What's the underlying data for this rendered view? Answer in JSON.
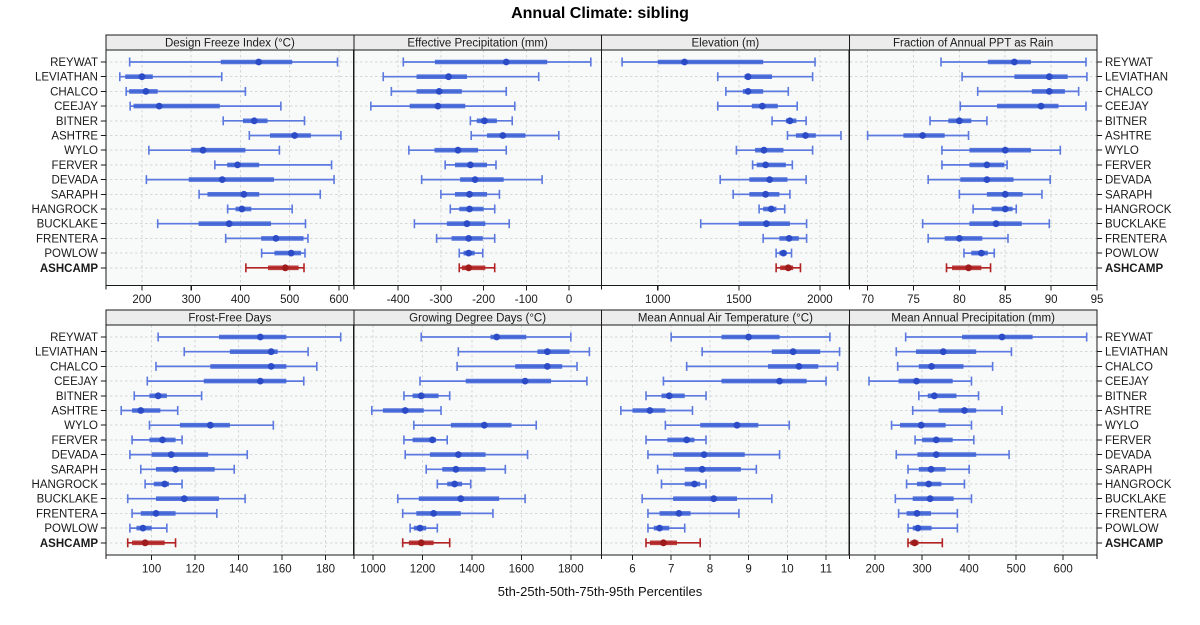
{
  "title": "Annual Climate: sibling",
  "caption": "5th-25th-50th-75th-95th Percentiles",
  "percentile_labels": [
    "5th",
    "25th",
    "50th",
    "75th",
    "95th"
  ],
  "highlight_site": "ASHCAMP",
  "colors": {
    "blue_line": "#5B79DF",
    "blue_band": "#3E62D6",
    "blue_dot": "#2C4BC6",
    "red_line": "#B22222",
    "red_band": "#B22222",
    "red_dot": "#9E1B1B",
    "grid": "#D4D8D8",
    "strip_bg": "#ECECEC",
    "panel_bg": "#F8F9F9",
    "border": "#1A1A1A"
  },
  "sites": [
    "REYWAT",
    "LEVIATHAN",
    "CHALCO",
    "CEEJAY",
    "BITNER",
    "ASHTRE",
    "WYLO",
    "FERVER",
    "DEVADA",
    "SARAPH",
    "HANGROCK",
    "BUCKLAKE",
    "FRENTERA",
    "POWLOW",
    "ASHCAMP"
  ],
  "chart_data": [
    {
      "type": "scatter",
      "subtype": "percentile-interval-dotplot",
      "title": "Design Freeze Index (°C)",
      "xlim": [
        127,
        630
      ],
      "xticks": [
        200,
        300,
        400,
        500,
        600
      ],
      "values": [
        [
          175,
          360,
          437,
          505,
          597
        ],
        [
          155,
          166,
          200,
          222,
          362
        ],
        [
          168,
          174,
          208,
          232,
          410
        ],
        [
          176,
          183,
          235,
          358,
          482
        ],
        [
          365,
          405,
          428,
          455,
          530
        ],
        [
          418,
          460,
          510,
          543,
          604
        ],
        [
          214,
          300,
          324,
          410,
          479
        ],
        [
          348,
          373,
          394,
          438,
          585
        ],
        [
          209,
          295,
          363,
          468,
          590
        ],
        [
          316,
          333,
          407,
          438,
          562
        ],
        [
          374,
          390,
          403,
          422,
          505
        ],
        [
          232,
          315,
          377,
          462,
          532
        ],
        [
          370,
          442,
          472,
          528,
          537
        ],
        [
          443,
          469,
          503,
          523,
          531
        ],
        [
          411,
          456,
          491,
          518,
          529
        ]
      ]
    },
    {
      "type": "scatter",
      "subtype": "percentile-interval-dotplot",
      "title": "Effective Precipitation (mm)",
      "xlim": [
        -504,
        76
      ],
      "xticks": [
        -400,
        -300,
        -200,
        -100,
        0
      ],
      "values": [
        [
          -388,
          -314,
          -147,
          -51,
          51
        ],
        [
          -435,
          -357,
          -282,
          -239,
          -71
        ],
        [
          -416,
          -357,
          -304,
          -251,
          -147
        ],
        [
          -464,
          -373,
          -307,
          -243,
          -127
        ],
        [
          -231,
          -216,
          -198,
          -169,
          -133
        ],
        [
          -229,
          -192,
          -155,
          -102,
          -24
        ],
        [
          -375,
          -315,
          -260,
          -213,
          -147
        ],
        [
          -290,
          -267,
          -231,
          -192,
          -171
        ],
        [
          -345,
          -255,
          -220,
          -153,
          -63
        ],
        [
          -300,
          -267,
          -233,
          -192,
          -163
        ],
        [
          -278,
          -257,
          -233,
          -200,
          -174
        ],
        [
          -362,
          -286,
          -239,
          -196,
          -140
        ],
        [
          -310,
          -275,
          -235,
          -202,
          -174
        ],
        [
          -257,
          -247,
          -235,
          -221,
          -202
        ],
        [
          -257,
          -251,
          -235,
          -196,
          -174
        ]
      ]
    },
    {
      "type": "scatter",
      "subtype": "percentile-interval-dotplot",
      "title": "Elevation (m)",
      "xlim": [
        653,
        2181
      ],
      "xticks": [
        1000,
        1500,
        2000
      ],
      "values": [
        [
          780,
          1000,
          1165,
          1650,
          1970
        ],
        [
          1370,
          1535,
          1557,
          1705,
          1955
        ],
        [
          1420,
          1525,
          1557,
          1650,
          1805
        ],
        [
          1370,
          1580,
          1645,
          1740,
          1860
        ],
        [
          1705,
          1790,
          1815,
          1855,
          1915
        ],
        [
          1800,
          1852,
          1911,
          1975,
          2130
        ],
        [
          1485,
          1600,
          1655,
          1775,
          1955
        ],
        [
          1585,
          1610,
          1665,
          1790,
          1830
        ],
        [
          1385,
          1565,
          1690,
          1800,
          1915
        ],
        [
          1465,
          1565,
          1665,
          1750,
          1815
        ],
        [
          1625,
          1650,
          1700,
          1732,
          1783
        ],
        [
          1265,
          1500,
          1670,
          1815,
          1918
        ],
        [
          1650,
          1750,
          1810,
          1870,
          1918
        ],
        [
          1730,
          1750,
          1775,
          1795,
          1825
        ],
        [
          1730,
          1755,
          1805,
          1835,
          1880
        ]
      ]
    },
    {
      "type": "scatter",
      "subtype": "percentile-interval-dotplot",
      "title": "Fraction of Annual PPT as Rain",
      "xlim": [
        68,
        95
      ],
      "xticks": [
        70,
        75,
        80,
        85,
        90,
        95
      ],
      "values": [
        [
          78.0,
          83.1,
          86.0,
          87.8,
          93.8
        ],
        [
          80.3,
          86.0,
          89.8,
          91.8,
          93.9
        ],
        [
          82.0,
          87.9,
          89.8,
          91.5,
          93.0
        ],
        [
          80.1,
          84.1,
          88.9,
          90.8,
          93.8
        ],
        [
          76.8,
          78.8,
          80.0,
          81.3,
          83.0
        ],
        [
          70.0,
          73.9,
          76.0,
          78.4,
          81.0
        ],
        [
          78.1,
          81.1,
          85.0,
          87.8,
          91.0
        ],
        [
          78.1,
          81.1,
          83.0,
          84.9,
          85.2
        ],
        [
          76.6,
          80.1,
          83.0,
          85.9,
          89.9
        ],
        [
          80.0,
          83.0,
          85.0,
          86.9,
          89.0
        ],
        [
          81.5,
          83.5,
          85.0,
          85.8,
          86.2
        ],
        [
          76.0,
          81.1,
          84.0,
          86.8,
          89.8
        ],
        [
          76.6,
          78.4,
          80.0,
          82.5,
          85.3
        ],
        [
          80.5,
          81.3,
          82.4,
          83.1,
          83.8
        ],
        [
          78.6,
          79.2,
          81.0,
          82.4,
          83.4
        ]
      ]
    },
    {
      "type": "scatter",
      "subtype": "percentile-interval-dotplot",
      "title": "Frost-Free Days",
      "xlim": [
        79,
        193
      ],
      "xticks": [
        100,
        120,
        140,
        160,
        180
      ],
      "values": [
        [
          103,
          131,
          150,
          162,
          187
        ],
        [
          115,
          136,
          155,
          158,
          172
        ],
        [
          102,
          127,
          155,
          162,
          176
        ],
        [
          98,
          124,
          150,
          162,
          170
        ],
        [
          92,
          99,
          103,
          107,
          123
        ],
        [
          86,
          91,
          95,
          104,
          112
        ],
        [
          99,
          113,
          127,
          136,
          156
        ],
        [
          91,
          99,
          105,
          111,
          114
        ],
        [
          90,
          100,
          109,
          126,
          144
        ],
        [
          95,
          102,
          111,
          129,
          138
        ],
        [
          97,
          101,
          106,
          108,
          114
        ],
        [
          89,
          102,
          115,
          131,
          143
        ],
        [
          91,
          95,
          102,
          111,
          130
        ],
        [
          90,
          93,
          96,
          100,
          107
        ],
        [
          89,
          91,
          97,
          106,
          111
        ]
      ]
    },
    {
      "type": "scatter",
      "subtype": "percentile-interval-dotplot",
      "title": "Growing Degree Days (°C)",
      "xlim": [
        922,
        1924
      ],
      "xticks": [
        1000,
        1200,
        1400,
        1600,
        1800
      ],
      "values": [
        [
          1195,
          1475,
          1500,
          1620,
          1800
        ],
        [
          1345,
          1665,
          1705,
          1795,
          1875
        ],
        [
          1340,
          1575,
          1705,
          1765,
          1825
        ],
        [
          1190,
          1375,
          1615,
          1720,
          1865
        ],
        [
          1125,
          1160,
          1195,
          1265,
          1310
        ],
        [
          995,
          1040,
          1130,
          1205,
          1275
        ],
        [
          1165,
          1315,
          1450,
          1560,
          1660
        ],
        [
          1125,
          1160,
          1240,
          1255,
          1300
        ],
        [
          1130,
          1230,
          1345,
          1455,
          1625
        ],
        [
          1215,
          1280,
          1335,
          1455,
          1535
        ],
        [
          1260,
          1300,
          1330,
          1360,
          1395
        ],
        [
          1100,
          1185,
          1355,
          1510,
          1615
        ],
        [
          1120,
          1175,
          1245,
          1355,
          1485
        ],
        [
          1150,
          1165,
          1190,
          1215,
          1260
        ],
        [
          1120,
          1145,
          1195,
          1245,
          1310
        ]
      ]
    },
    {
      "type": "scatter",
      "subtype": "percentile-interval-dotplot",
      "title": "Mean Annual Air Temperature (°C)",
      "xlim": [
        5.2,
        11.6
      ],
      "xticks": [
        6,
        7,
        8,
        9,
        10,
        11
      ],
      "values": [
        [
          7.0,
          8.3,
          9.0,
          9.8,
          11.1
        ],
        [
          7.8,
          9.6,
          10.15,
          10.85,
          11.35
        ],
        [
          7.4,
          9.5,
          10.3,
          10.8,
          11.3
        ],
        [
          6.8,
          8.3,
          9.8,
          10.5,
          11.0
        ],
        [
          6.35,
          6.75,
          6.95,
          7.35,
          7.9
        ],
        [
          5.7,
          6.0,
          6.45,
          6.85,
          7.55
        ],
        [
          6.85,
          7.75,
          8.7,
          9.25,
          10.05
        ],
        [
          6.35,
          6.9,
          7.4,
          7.6,
          7.9
        ],
        [
          6.4,
          7.05,
          7.85,
          8.9,
          9.8
        ],
        [
          6.65,
          7.35,
          7.8,
          8.8,
          9.2
        ],
        [
          6.75,
          7.35,
          7.6,
          7.75,
          7.9
        ],
        [
          6.25,
          7.05,
          8.1,
          8.7,
          9.6
        ],
        [
          6.4,
          6.7,
          7.2,
          7.5,
          8.75
        ],
        [
          6.4,
          6.55,
          6.7,
          6.95,
          7.35
        ],
        [
          6.35,
          6.45,
          6.8,
          7.15,
          7.75
        ]
      ]
    },
    {
      "type": "scatter",
      "subtype": "percentile-interval-dotplot",
      "title": "Mean Annual Precipitation (mm)",
      "xlim": [
        145,
        672
      ],
      "xticks": [
        200,
        300,
        400,
        500,
        600
      ],
      "values": [
        [
          265,
          385,
          470,
          535,
          650
        ],
        [
          245,
          287,
          345,
          415,
          490
        ],
        [
          248,
          293,
          320,
          388,
          450
        ],
        [
          187,
          250,
          288,
          365,
          405
        ],
        [
          293,
          312,
          326,
          373,
          420
        ],
        [
          280,
          335,
          390,
          415,
          470
        ],
        [
          235,
          253,
          298,
          350,
          405
        ],
        [
          285,
          300,
          330,
          365,
          410
        ],
        [
          245,
          290,
          330,
          415,
          485
        ],
        [
          270,
          293,
          319,
          350,
          400
        ],
        [
          267,
          289,
          314,
          341,
          390
        ],
        [
          243,
          280,
          317,
          367,
          405
        ],
        [
          250,
          267,
          289,
          319,
          375
        ],
        [
          270,
          280,
          291,
          320,
          375
        ],
        [
          270,
          275,
          284,
          292,
          343
        ]
      ]
    }
  ]
}
